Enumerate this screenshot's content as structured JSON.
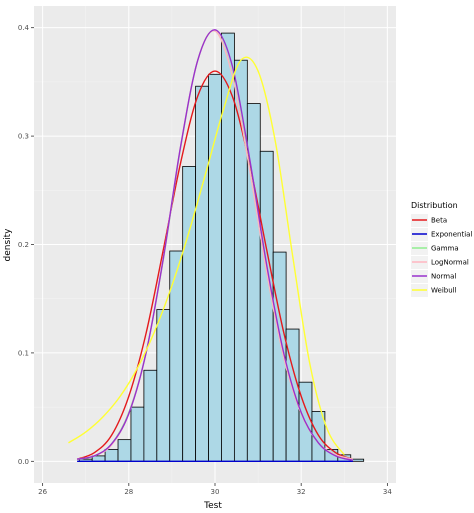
{
  "chart_data": {
    "type": "histogram",
    "xlabel": "Test",
    "ylabel": "density",
    "xlim": [
      25.8,
      34.2
    ],
    "ylim": [
      -0.02,
      0.42
    ],
    "x_ticks": [
      26,
      28,
      30,
      32,
      34
    ],
    "y_ticks": [
      0.0,
      0.1,
      0.2,
      0.3,
      0.4
    ],
    "x_tick_labels": [
      "26",
      "28",
      "30",
      "32",
      "34"
    ],
    "y_tick_labels": [
      "0.0",
      "0.1",
      "0.2",
      "0.3",
      "0.4"
    ],
    "grid": true,
    "bins": {
      "start": 26.85,
      "width": 0.3,
      "densities": [
        0.002,
        0.005,
        0.011,
        0.02,
        0.05,
        0.084,
        0.14,
        0.194,
        0.272,
        0.346,
        0.357,
        0.395,
        0.37,
        0.33,
        0.286,
        0.193,
        0.122,
        0.073,
        0.046,
        0.011,
        0.006,
        0.002
      ]
    },
    "bar_fill": "#add8e6",
    "bar_outline": "#000000",
    "legend": {
      "title": "Distribution",
      "position": "right"
    },
    "series": [
      {
        "name": "Beta",
        "color": "#e41a1c",
        "x": [
          26.8,
          27.2,
          27.6,
          28.0,
          28.4,
          28.8,
          29.2,
          29.6,
          30.0,
          30.4,
          30.8,
          31.2,
          31.6,
          32.0,
          32.4,
          32.8,
          33.2
        ],
        "y": [
          0.002,
          0.008,
          0.024,
          0.06,
          0.118,
          0.195,
          0.275,
          0.337,
          0.36,
          0.337,
          0.275,
          0.195,
          0.118,
          0.06,
          0.024,
          0.008,
          0.002
        ]
      },
      {
        "name": "Exponential",
        "color": "#0000cd",
        "x": [
          26.8,
          27.2,
          27.6,
          28.0,
          28.4,
          28.8,
          29.2,
          29.6,
          30.0,
          30.4,
          30.8,
          31.2,
          31.6,
          32.0,
          32.4,
          32.8,
          33.2
        ],
        "y": [
          0.0,
          0.0,
          0.0,
          0.0,
          0.0,
          0.0,
          0.0,
          0.0,
          0.0,
          0.0,
          0.0,
          0.0,
          0.0,
          0.0,
          0.0,
          0.0,
          0.0
        ]
      },
      {
        "name": "Gamma",
        "color": "#90ee90",
        "x": [
          26.8,
          27.2,
          27.6,
          28.0,
          28.4,
          28.8,
          29.2,
          29.6,
          30.0,
          30.4,
          30.8,
          31.2,
          31.6,
          32.0,
          32.4,
          32.8,
          33.2
        ],
        "y": [
          0.002,
          0.005,
          0.016,
          0.045,
          0.1,
          0.186,
          0.289,
          0.37,
          0.397,
          0.357,
          0.271,
          0.174,
          0.095,
          0.044,
          0.017,
          0.006,
          0.002
        ]
      },
      {
        "name": "LogNormal",
        "color": "#ffb6c1",
        "x": [
          26.8,
          27.2,
          27.6,
          28.0,
          28.4,
          28.8,
          29.2,
          29.6,
          30.0,
          30.4,
          30.8,
          31.2,
          31.6,
          32.0,
          32.4,
          32.8,
          33.2
        ],
        "y": [
          0.002,
          0.005,
          0.015,
          0.044,
          0.1,
          0.187,
          0.29,
          0.37,
          0.397,
          0.356,
          0.27,
          0.174,
          0.095,
          0.044,
          0.017,
          0.006,
          0.002
        ]
      },
      {
        "name": "Normal",
        "color": "#9932cc",
        "x": [
          26.8,
          27.2,
          27.6,
          28.0,
          28.4,
          28.8,
          29.2,
          29.6,
          30.0,
          30.4,
          30.8,
          31.2,
          31.6,
          32.0,
          32.4,
          32.8,
          33.2
        ],
        "y": [
          0.002,
          0.005,
          0.016,
          0.044,
          0.1,
          0.187,
          0.29,
          0.37,
          0.398,
          0.365,
          0.28,
          0.181,
          0.099,
          0.045,
          0.017,
          0.005,
          0.001
        ]
      },
      {
        "name": "Weibull",
        "color": "#ffff33",
        "x": [
          26.6,
          27.0,
          27.4,
          27.8,
          28.2,
          28.6,
          29.0,
          29.4,
          29.8,
          30.2,
          30.6,
          31.0,
          31.4,
          31.8,
          32.2,
          32.6,
          33.0
        ],
        "y": [
          0.017,
          0.027,
          0.041,
          0.06,
          0.086,
          0.12,
          0.162,
          0.212,
          0.268,
          0.325,
          0.37,
          0.36,
          0.295,
          0.19,
          0.09,
          0.03,
          0.006
        ]
      }
    ]
  }
}
